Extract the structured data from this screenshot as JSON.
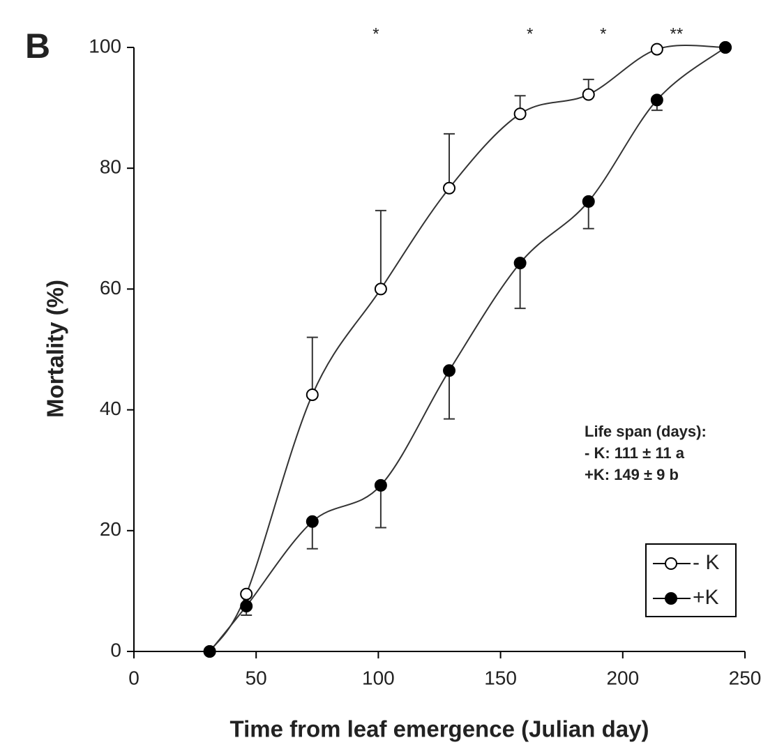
{
  "panel_label": "B",
  "chart_data": {
    "type": "line",
    "x_label": "Time from leaf emergence (Julian day)",
    "y_label": "Mortality (%)",
    "xlim": [
      0,
      250
    ],
    "xticks": [
      0,
      50,
      100,
      150,
      200,
      250
    ],
    "ylim": [
      0,
      100
    ],
    "yticks": [
      0,
      20,
      40,
      60,
      80,
      100
    ],
    "x": [
      31,
      46,
      73,
      101,
      129,
      158,
      186,
      214,
      242
    ],
    "series": [
      {
        "name": "- K",
        "color": "#ffffff",
        "error_side": "up",
        "values": [
          0,
          9.5,
          42.5,
          60,
          76.7,
          89,
          92.2,
          99.7,
          100
        ],
        "errors": [
          null,
          null,
          9.5,
          13,
          9,
          3,
          2.5,
          null,
          null
        ]
      },
      {
        "name": "+K",
        "color": "#000000",
        "error_side": "down",
        "values": [
          0,
          7.5,
          21.5,
          27.5,
          46.5,
          64.3,
          74.5,
          91.3,
          100
        ],
        "errors": [
          null,
          1.5,
          4.5,
          7,
          8,
          7.5,
          4.5,
          1.7,
          null
        ]
      }
    ],
    "annotations": [
      {
        "text": "*",
        "x": 99
      },
      {
        "text": "*",
        "x": 162
      },
      {
        "text": "*",
        "x": 192
      },
      {
        "text": "**",
        "x": 222
      }
    ],
    "notes": [
      "Life span (days):",
      "- K: 111 ± 11 a",
      "+K: 149 ± 9   b"
    ],
    "legend": "lower right"
  }
}
